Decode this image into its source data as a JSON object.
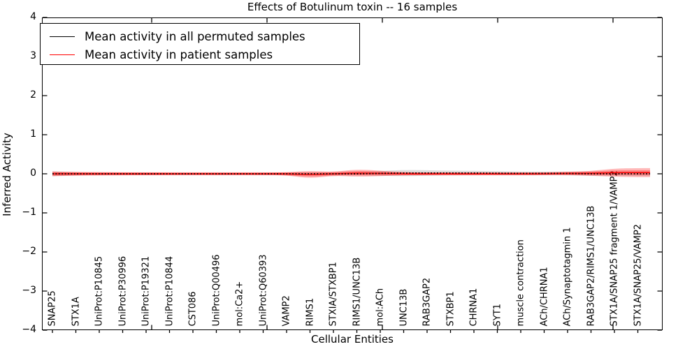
{
  "title": "Effects of Botulinum toxin -- 16 samples",
  "axes": {
    "xlabel": "Cellular Entities",
    "ylabel": "Inferred Activity",
    "yticks": [
      -4,
      -3,
      -2,
      -1,
      0,
      1,
      2,
      3,
      4
    ],
    "ylim": [
      -4,
      4
    ]
  },
  "legend": {
    "items": [
      {
        "label": "Mean activity in all permuted samples",
        "color": "#000000"
      },
      {
        "label": "Mean activity in patient samples",
        "color": "#ff0000"
      }
    ]
  },
  "colors": {
    "permuted_line": "#000000",
    "patient_line": "#ff0000",
    "patient_band": "#ff0000",
    "permuted_band": "#000000",
    "frame": "#000000"
  },
  "chart_data": {
    "type": "line",
    "title": "Effects of Botulinum toxin -- 16 samples",
    "xlabel": "Cellular Entities",
    "ylabel": "Inferred Activity",
    "ylim": [
      -4,
      4
    ],
    "yticks": [
      -4,
      -3,
      -2,
      -1,
      0,
      1,
      2,
      3,
      4
    ],
    "grid": false,
    "legend_position": "upper left",
    "categories": [
      "SNAP25",
      "STX1A",
      "UniProt:P10845",
      "UniProt:P30996",
      "UniProt:P19321",
      "UniProt:P10844",
      "CST086",
      "UniProt:Q00496",
      "mol:Ca2+",
      "UniProt:Q60393",
      "VAMP2",
      "RIMS1",
      "STXIA/STXBP1",
      "RIMS1/UNC13B",
      "mol:ACh",
      "UNC13B",
      "RAB3GAP2",
      "STXBP1",
      "CHRNA1",
      "SYT1",
      "muscle contraction",
      "ACh/CHRNA1",
      "ACh/Synaptotagmin 1",
      "RAB3GAP2/RIMS1/UNC13B",
      "STX1A/SNAP25 fragment 1/VAMP2",
      "STX1A/SNAP25/VAMP2"
    ],
    "series": [
      {
        "name": "Mean activity in all permuted samples",
        "values": [
          0,
          0,
          0,
          0,
          0,
          0,
          0,
          0,
          0,
          0,
          0,
          0,
          0,
          0,
          0.01,
          0.02,
          0.02,
          0.02,
          0.02,
          0.015,
          0.01,
          0.01,
          0.01,
          0,
          0,
          0
        ],
        "std": [
          0.06,
          0.04,
          0.03,
          0.03,
          0.03,
          0.025,
          0.025,
          0.025,
          0.025,
          0.025,
          0.03,
          0.04,
          0.035,
          0.04,
          0.06,
          0.08,
          0.07,
          0.06,
          0.055,
          0.05,
          0.045,
          0.04,
          0.045,
          0.05,
          0.05,
          0.055
        ]
      },
      {
        "name": "Mean activity in patient samples",
        "values": [
          0,
          0,
          0,
          0,
          0,
          0,
          0,
          0,
          0,
          0,
          0,
          -0.02,
          0,
          0.02,
          0.01,
          0,
          0,
          0,
          0,
          0,
          0,
          0,
          0.01,
          0.01,
          0.03,
          0.03
        ],
        "std": [
          0.06,
          0.045,
          0.04,
          0.035,
          0.035,
          0.03,
          0.03,
          0.03,
          0.03,
          0.03,
          0.035,
          0.1,
          0.045,
          0.095,
          0.07,
          0.035,
          0.03,
          0.03,
          0.03,
          0.03,
          0.03,
          0.03,
          0.04,
          0.06,
          0.105,
          0.115
        ]
      }
    ]
  }
}
